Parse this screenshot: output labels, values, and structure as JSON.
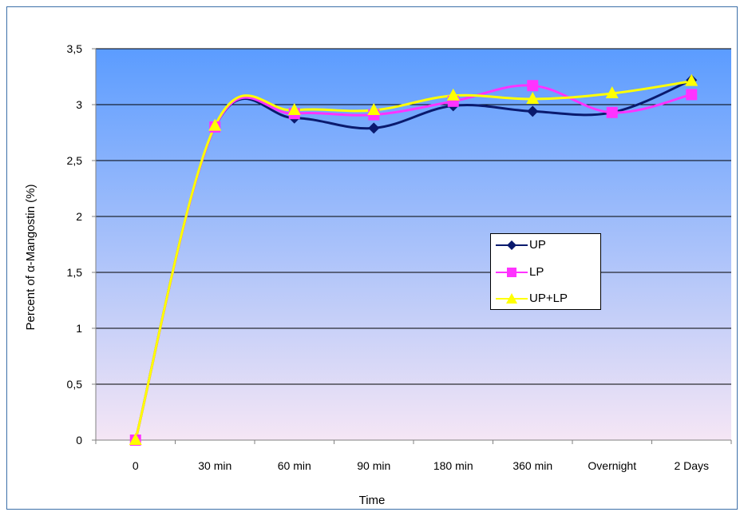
{
  "chart_data": {
    "type": "line",
    "title": "",
    "xlabel": "Time",
    "ylabel": "Percent of α-Mangostin (%)",
    "categories": [
      "0",
      "30 min",
      "60 min",
      "90 min",
      "180 min",
      "360 min",
      "Overnight",
      "2 Days"
    ],
    "ylim": [
      0,
      3.5
    ],
    "yticks": [
      "0",
      "0,5",
      "1",
      "1,5",
      "2",
      "2,5",
      "3",
      "3,5"
    ],
    "ytick_values": [
      0,
      0.5,
      1,
      1.5,
      2,
      2.5,
      3,
      3.5
    ],
    "grid": true,
    "legend_position": "right",
    "series": [
      {
        "name": "UP",
        "color": "#0a1a6e",
        "marker": "diamond",
        "values": [
          0,
          2.8,
          2.88,
          2.79,
          2.99,
          2.94,
          2.93,
          3.22
        ]
      },
      {
        "name": "LP",
        "color": "#ff33ff",
        "marker": "square",
        "values": [
          0,
          2.8,
          2.92,
          2.91,
          3.03,
          3.17,
          2.93,
          3.09
        ]
      },
      {
        "name": "UP+LP",
        "color": "#ffff00",
        "marker": "triangle",
        "values": [
          0,
          2.81,
          2.95,
          2.95,
          3.08,
          3.05,
          3.1,
          3.21
        ]
      }
    ],
    "plot_gradient": [
      "#5b9cff",
      "#f5e6f5"
    ]
  }
}
